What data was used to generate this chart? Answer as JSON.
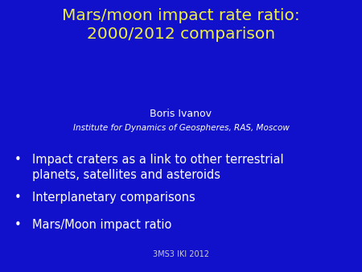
{
  "title_line1": "Mars/moon impact rate ratio:",
  "title_line2": "2000/2012 comparison",
  "title_color": "#EEEE44",
  "background_color": "#1111CC",
  "author": "Boris Ivanov",
  "institute": "Institute for Dynamics of Geospheres, RAS, Moscow",
  "author_color": "#FFFFFF",
  "bullet_points": [
    "Impact craters as a link to other terrestrial\nplanets, satellites and asteroids",
    "Interplanetary comparisons",
    "Mars/Moon impact ratio"
  ],
  "bullet_color": "#FFFFFF",
  "footer": "3MS3 IKI 2012",
  "footer_color": "#CCCCCC",
  "title_fontsize": 14.5,
  "author_fontsize": 9,
  "institute_fontsize": 7.5,
  "bullet_fontsize": 10.5,
  "footer_fontsize": 7
}
